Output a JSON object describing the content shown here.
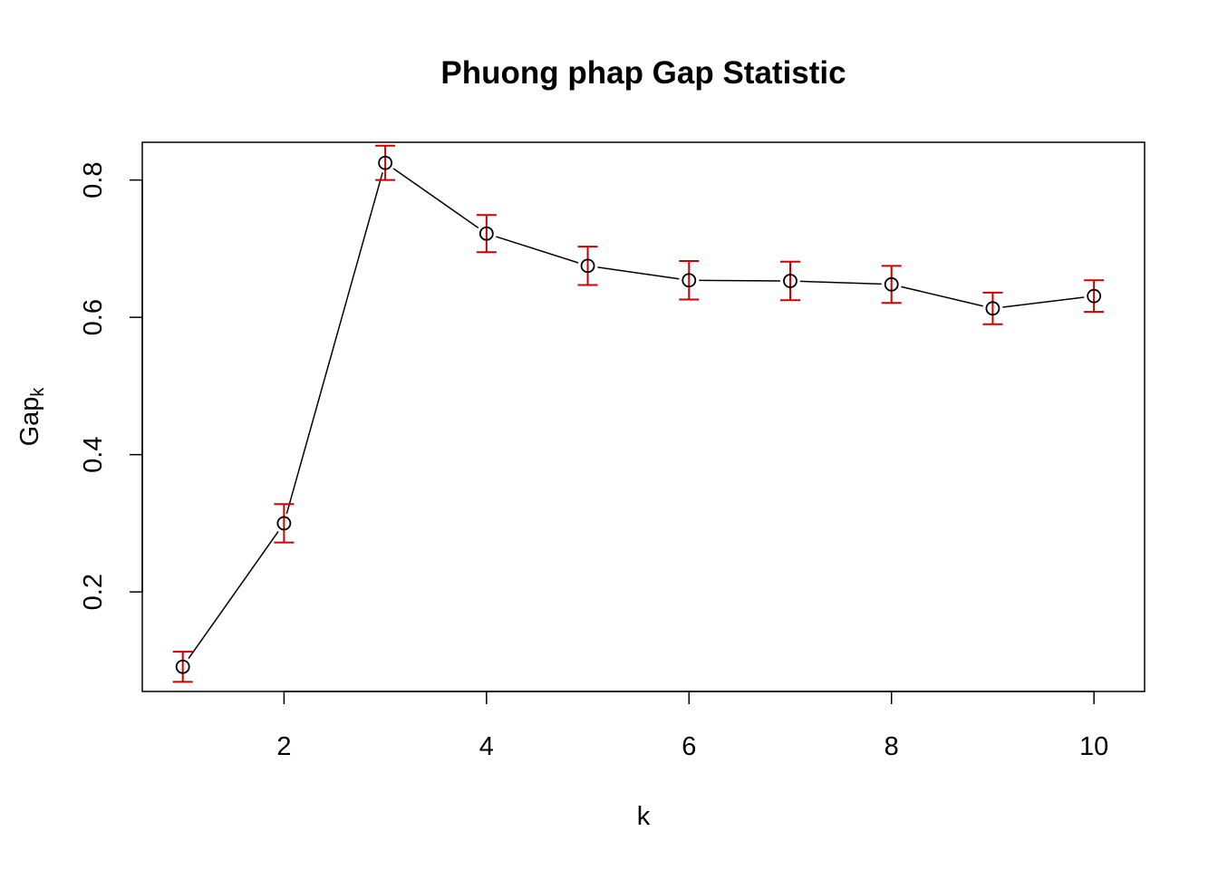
{
  "chart_data": {
    "type": "line",
    "title": "Phuong phap Gap Statistic",
    "xlabel": "k",
    "ylabel": "Gap",
    "ylabel_subscript": "k",
    "x": [
      1,
      2,
      3,
      4,
      5,
      6,
      7,
      8,
      9,
      10
    ],
    "series": [
      {
        "values": [
          0.091,
          0.3,
          0.825,
          0.722,
          0.675,
          0.654,
          0.653,
          0.648,
          0.613,
          0.631
        ],
        "error": [
          0.022,
          0.028,
          0.025,
          0.027,
          0.028,
          0.028,
          0.028,
          0.027,
          0.023,
          0.023
        ],
        "marker": "open-circle",
        "line_color": "#000000",
        "marker_color": "#000000",
        "error_bar_color": "#cc0000"
      }
    ],
    "xlim": [
      0.6,
      10.5
    ],
    "ylim": [
      0.055,
      0.855
    ],
    "x_ticks": [
      2,
      4,
      6,
      8,
      10
    ],
    "y_ticks": [
      0.2,
      0.4,
      0.6,
      0.8
    ],
    "x_tick_labels": [
      "2",
      "4",
      "6",
      "8",
      "10"
    ],
    "y_tick_labels": [
      "0.2",
      "0.4",
      "0.6",
      "0.8"
    ],
    "grid": false,
    "legend": "none"
  }
}
